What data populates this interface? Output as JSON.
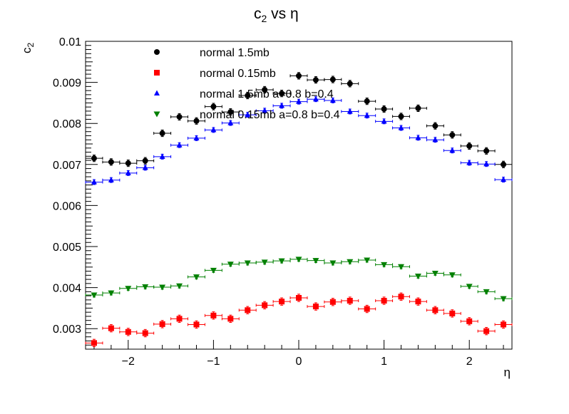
{
  "chart_data": {
    "type": "scatter",
    "title": "c₂ vs   η",
    "xlabel": "η",
    "ylabel": "c₂",
    "xlim": [
      -2.5,
      2.5
    ],
    "ylim": [
      0.0025,
      0.01
    ],
    "x_ticks": [
      -2,
      -1,
      0,
      1,
      2
    ],
    "x_tick_labels": [
      "−2",
      "−1",
      "0",
      "1",
      "2"
    ],
    "y_ticks": [
      0.003,
      0.004,
      0.005,
      0.006,
      0.007,
      0.008,
      0.009,
      0.01
    ],
    "y_tick_labels": [
      "0.003",
      "0.004",
      "0.005",
      "0.006",
      "0.007",
      "0.008",
      "0.009",
      "0.01"
    ],
    "grid": false,
    "legend_position": "top-center",
    "x_bin_halfwidth": 0.1,
    "x": [
      -2.4,
      -2.2,
      -2.0,
      -1.8,
      -1.6,
      -1.4,
      -1.2,
      -1.0,
      -0.8,
      -0.6,
      -0.4,
      -0.2,
      0.0,
      0.2,
      0.4,
      0.6,
      0.8,
      1.0,
      1.2,
      1.4,
      1.6,
      1.8,
      2.0,
      2.2,
      2.4
    ],
    "series": [
      {
        "name": "normal 1.5mb",
        "marker": "circle",
        "color": "#000000",
        "values": [
          0.00715,
          0.00706,
          0.00703,
          0.00709,
          0.00776,
          0.00816,
          0.00806,
          0.00841,
          0.00828,
          0.00868,
          0.00882,
          0.00873,
          0.00916,
          0.00906,
          0.00907,
          0.00897,
          0.00854,
          0.00835,
          0.00817,
          0.00837,
          0.00794,
          0.00772,
          0.00745,
          0.00733,
          0.007
        ],
        "errors": [
          8e-05,
          8e-05,
          8e-05,
          8e-05,
          8e-05,
          8e-05,
          8e-05,
          8e-05,
          8e-05,
          8e-05,
          8e-05,
          8e-05,
          8e-05,
          8e-05,
          8e-05,
          8e-05,
          8e-05,
          8e-05,
          8e-05,
          8e-05,
          8e-05,
          8e-05,
          8e-05,
          8e-05,
          8e-05
        ]
      },
      {
        "name": "normal 0.15mb",
        "marker": "square",
        "color": "#ff0000",
        "values": [
          0.00265,
          0.00301,
          0.00292,
          0.00289,
          0.00311,
          0.00324,
          0.0031,
          0.00332,
          0.00324,
          0.00345,
          0.00357,
          0.00366,
          0.00375,
          0.00354,
          0.00365,
          0.00368,
          0.00348,
          0.00368,
          0.00378,
          0.00366,
          0.00345,
          0.00337,
          0.00318,
          0.00294,
          0.0031
        ],
        "errors": [
          9e-05,
          9e-05,
          9e-05,
          9e-05,
          9e-05,
          9e-05,
          9e-05,
          9e-05,
          9e-05,
          9e-05,
          9e-05,
          9e-05,
          9e-05,
          9e-05,
          9e-05,
          9e-05,
          9e-05,
          9e-05,
          9e-05,
          9e-05,
          9e-05,
          9e-05,
          9e-05,
          9e-05,
          9e-05
        ]
      },
      {
        "name": "normal 1.5mb a=0.8 b=0.4",
        "marker": "triangle-up",
        "color": "#0000ff",
        "values": [
          0.00657,
          0.00662,
          0.00679,
          0.00692,
          0.00719,
          0.00747,
          0.00764,
          0.00784,
          0.00801,
          0.00821,
          0.00831,
          0.00843,
          0.00853,
          0.00859,
          0.00856,
          0.00829,
          0.00819,
          0.00805,
          0.00789,
          0.00765,
          0.0076,
          0.00734,
          0.00704,
          0.00701,
          0.00663
        ],
        "errors": [
          6e-05,
          6e-05,
          6e-05,
          6e-05,
          6e-05,
          6e-05,
          6e-05,
          6e-05,
          6e-05,
          6e-05,
          6e-05,
          6e-05,
          6e-05,
          6e-05,
          6e-05,
          6e-05,
          6e-05,
          6e-05,
          6e-05,
          6e-05,
          6e-05,
          6e-05,
          6e-05,
          6e-05,
          6e-05
        ]
      },
      {
        "name": "normal 0.15mb a=0.8 b=0.4",
        "marker": "triangle-down",
        "color": "#008000",
        "values": [
          0.00382,
          0.00387,
          0.00398,
          0.00402,
          0.00401,
          0.00404,
          0.00426,
          0.00442,
          0.00457,
          0.0046,
          0.00462,
          0.00465,
          0.00469,
          0.00466,
          0.0046,
          0.00463,
          0.00467,
          0.00456,
          0.00451,
          0.00428,
          0.00435,
          0.00431,
          0.00403,
          0.0039,
          0.00373
        ],
        "errors": [
          5e-05,
          5e-05,
          5e-05,
          5e-05,
          5e-05,
          5e-05,
          5e-05,
          5e-05,
          5e-05,
          5e-05,
          5e-05,
          5e-05,
          5e-05,
          5e-05,
          5e-05,
          5e-05,
          5e-05,
          5e-05,
          5e-05,
          5e-05,
          5e-05,
          5e-05,
          5e-05,
          5e-05,
          5e-05
        ]
      }
    ]
  }
}
